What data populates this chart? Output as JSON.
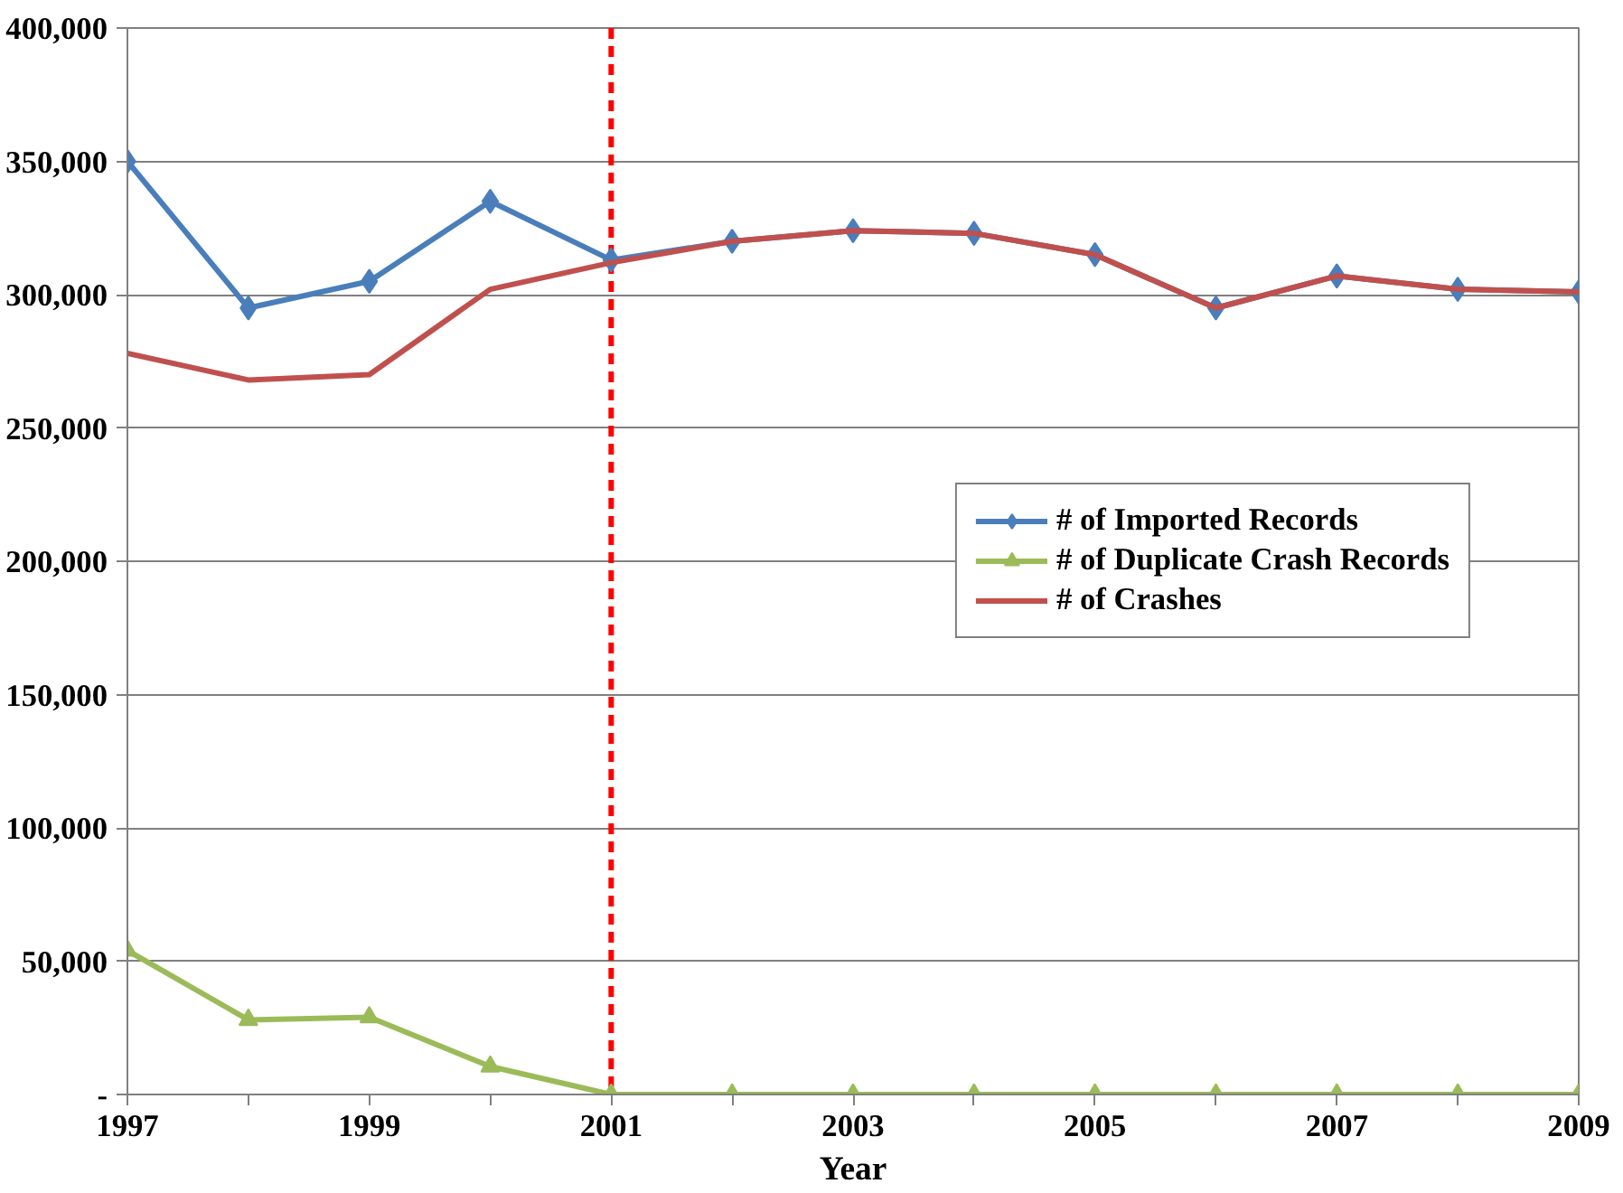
{
  "chart_data": {
    "type": "line",
    "xlabel": "Year",
    "x": [
      1997,
      1998,
      1999,
      2000,
      2001,
      2002,
      2003,
      2004,
      2005,
      2006,
      2007,
      2008,
      2009
    ],
    "xlim": [
      1997,
      2009
    ],
    "xticks": [
      1997,
      {
        "value": 1998,
        "label": null
      },
      1999,
      {
        "value": 2000,
        "label": null
      },
      2001,
      {
        "value": 2002,
        "label": null
      },
      2003,
      {
        "value": 2004,
        "label": null
      },
      2005,
      {
        "value": 2006,
        "label": null
      },
      2007,
      {
        "value": 2008,
        "label": null
      },
      2009
    ],
    "ylim": [
      0,
      400000
    ],
    "yticks": [
      {
        "value": 0,
        "label": "-"
      },
      {
        "value": 50000,
        "label": "50,000"
      },
      {
        "value": 100000,
        "label": "100,000"
      },
      {
        "value": 150000,
        "label": "150,000"
      },
      {
        "value": 200000,
        "label": "200,000"
      },
      {
        "value": 250000,
        "label": "250,000"
      },
      {
        "value": 300000,
        "label": "300,000"
      },
      {
        "value": 350000,
        "label": "350,000"
      },
      {
        "value": 400000,
        "label": "400,000"
      }
    ],
    "grid": "y",
    "legend": "right",
    "series": [
      {
        "name": "# of Imported Records",
        "color": "#4a7ebb",
        "marker": "diamond",
        "values": [
          350000,
          295000,
          305000,
          335000,
          313000,
          320000,
          324000,
          323000,
          315000,
          295000,
          307000,
          302000,
          301000
        ]
      },
      {
        "name": "# of Duplicate Crash Records",
        "color": "#9bbb59",
        "marker": "triangle",
        "values": [
          54000,
          28000,
          29000,
          10500,
          0,
          0,
          0,
          0,
          0,
          0,
          0,
          0,
          0
        ]
      },
      {
        "name": "# of Crashes",
        "color": "#c0504d",
        "marker": "none",
        "values": [
          278000,
          268000,
          270000,
          302000,
          312000,
          320000,
          324000,
          323000,
          315000,
          295000,
          307000,
          302000,
          301000
        ]
      }
    ],
    "ref_lines": [
      {
        "axis": "x",
        "value": 2001,
        "color": "#ff0000",
        "line_style": "dashed"
      }
    ]
  }
}
